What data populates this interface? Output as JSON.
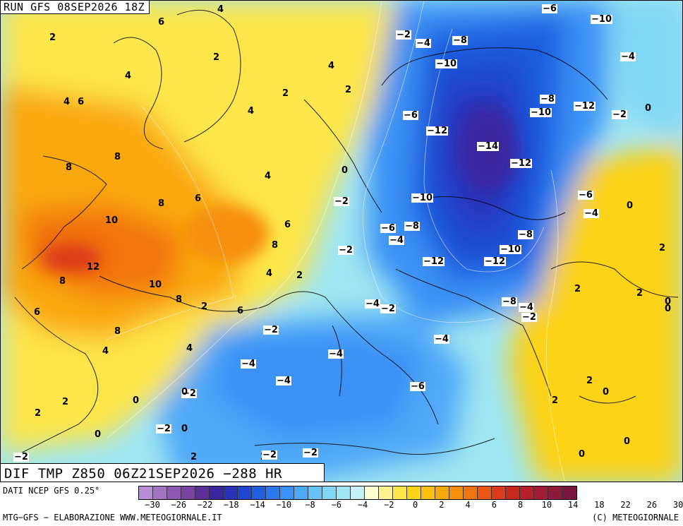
{
  "header": {
    "run": "RUN GFS 08SEP2026 18Z"
  },
  "title": "DIF TMP Z850 06Z21SEP2026 −288 HR",
  "footer": {
    "data_source": "DATI NCEP GFS 0.25°",
    "processing": "MTG−GFS − ELABORAZIONE WWW.METEOGIORNALE.IT",
    "copyright": "(C) METEOGIORNALE"
  },
  "legend": {
    "colors": [
      "#b88fd6",
      "#a373c4",
      "#8e58b3",
      "#7a43a3",
      "#5b2f9a",
      "#3b25a0",
      "#2a33b8",
      "#1e47cf",
      "#1f5fe0",
      "#2c78ef",
      "#3b91f5",
      "#4fa8f7",
      "#66c1f7",
      "#7fd6f5",
      "#9ee6f2",
      "#c4f1f5",
      "#ffffd0",
      "#fff38f",
      "#fde64a",
      "#fcd317",
      "#fbbf10",
      "#f9a80b",
      "#f68f0a",
      "#f2740e",
      "#ea5512",
      "#dc3a18",
      "#c9281f",
      "#b51f2a",
      "#a11c34",
      "#8d193b",
      "#7a1640"
    ],
    "tick_labels": [
      "−30",
      "−26",
      "−22",
      "−18",
      "−14",
      "−10",
      "−8",
      "−6",
      "−4",
      "−2",
      "0",
      "2",
      "4",
      "6",
      "8",
      "10",
      "14",
      "18",
      "22",
      "26",
      "30"
    ]
  },
  "contour_labels": [
    {
      "t": "4"
    },
    {
      "t": "6"
    },
    {
      "t": "2"
    },
    {
      "t": "4"
    },
    {
      "t": "2"
    },
    {
      "t": "4"
    },
    {
      "t": "6"
    },
    {
      "t": "2"
    },
    {
      "t": "4"
    },
    {
      "t": "4"
    },
    {
      "t": "2"
    },
    {
      "t": "8"
    },
    {
      "t": "8"
    },
    {
      "t": "6"
    },
    {
      "t": "8"
    },
    {
      "t": "10"
    },
    {
      "t": "6"
    },
    {
      "t": "4"
    },
    {
      "t": "8"
    },
    {
      "t": "12"
    },
    {
      "t": "8"
    },
    {
      "t": "10"
    },
    {
      "t": "8"
    },
    {
      "t": "2"
    },
    {
      "t": "6"
    },
    {
      "t": "4"
    },
    {
      "t": "2"
    },
    {
      "t": "6"
    },
    {
      "t": "8"
    },
    {
      "t": "4"
    },
    {
      "t": "4"
    },
    {
      "t": "2"
    },
    {
      "t": "0"
    },
    {
      "t": "2"
    },
    {
      "t": "0"
    },
    {
      "t": "0"
    },
    {
      "t": "2"
    },
    {
      "t": "−2"
    },
    {
      "t": "2"
    },
    {
      "t": "0"
    },
    {
      "t": "−2"
    },
    {
      "t": "−2"
    },
    {
      "t": "−4"
    },
    {
      "t": "−2"
    },
    {
      "t": "−4"
    },
    {
      "t": "−4"
    },
    {
      "t": "−4"
    },
    {
      "t": "−4"
    },
    {
      "t": "−2"
    },
    {
      "t": "−2"
    },
    {
      "t": "−6"
    },
    {
      "t": "−4"
    },
    {
      "t": "−8"
    },
    {
      "t": "−6"
    },
    {
      "t": "−10"
    },
    {
      "t": "−12"
    },
    {
      "t": "−12"
    },
    {
      "t": "−2"
    },
    {
      "t": "−4"
    },
    {
      "t": "−8"
    },
    {
      "t": "−10"
    },
    {
      "t": "−6"
    },
    {
      "t": "−12"
    },
    {
      "t": "−14"
    },
    {
      "t": "−12"
    },
    {
      "t": "−10"
    },
    {
      "t": "−8"
    },
    {
      "t": "−10"
    },
    {
      "t": "−12"
    },
    {
      "t": "−6"
    },
    {
      "t": "−4"
    },
    {
      "t": "−2"
    },
    {
      "t": "−10"
    },
    {
      "t": "−8"
    },
    {
      "t": "−8"
    },
    {
      "t": "−6"
    },
    {
      "t": "−4"
    },
    {
      "t": "−2"
    },
    {
      "t": "0"
    },
    {
      "t": "−4"
    },
    {
      "t": "0"
    },
    {
      "t": "2"
    },
    {
      "t": "2"
    },
    {
      "t": "2"
    },
    {
      "t": "0"
    },
    {
      "t": "2"
    },
    {
      "t": "0"
    },
    {
      "t": "0"
    },
    {
      "t": "0"
    },
    {
      "t": "0"
    },
    {
      "t": "−2"
    },
    {
      "t": "−2"
    },
    {
      "t": "2"
    },
    {
      "t": "−2"
    },
    {
      "t": "0"
    }
  ]
}
